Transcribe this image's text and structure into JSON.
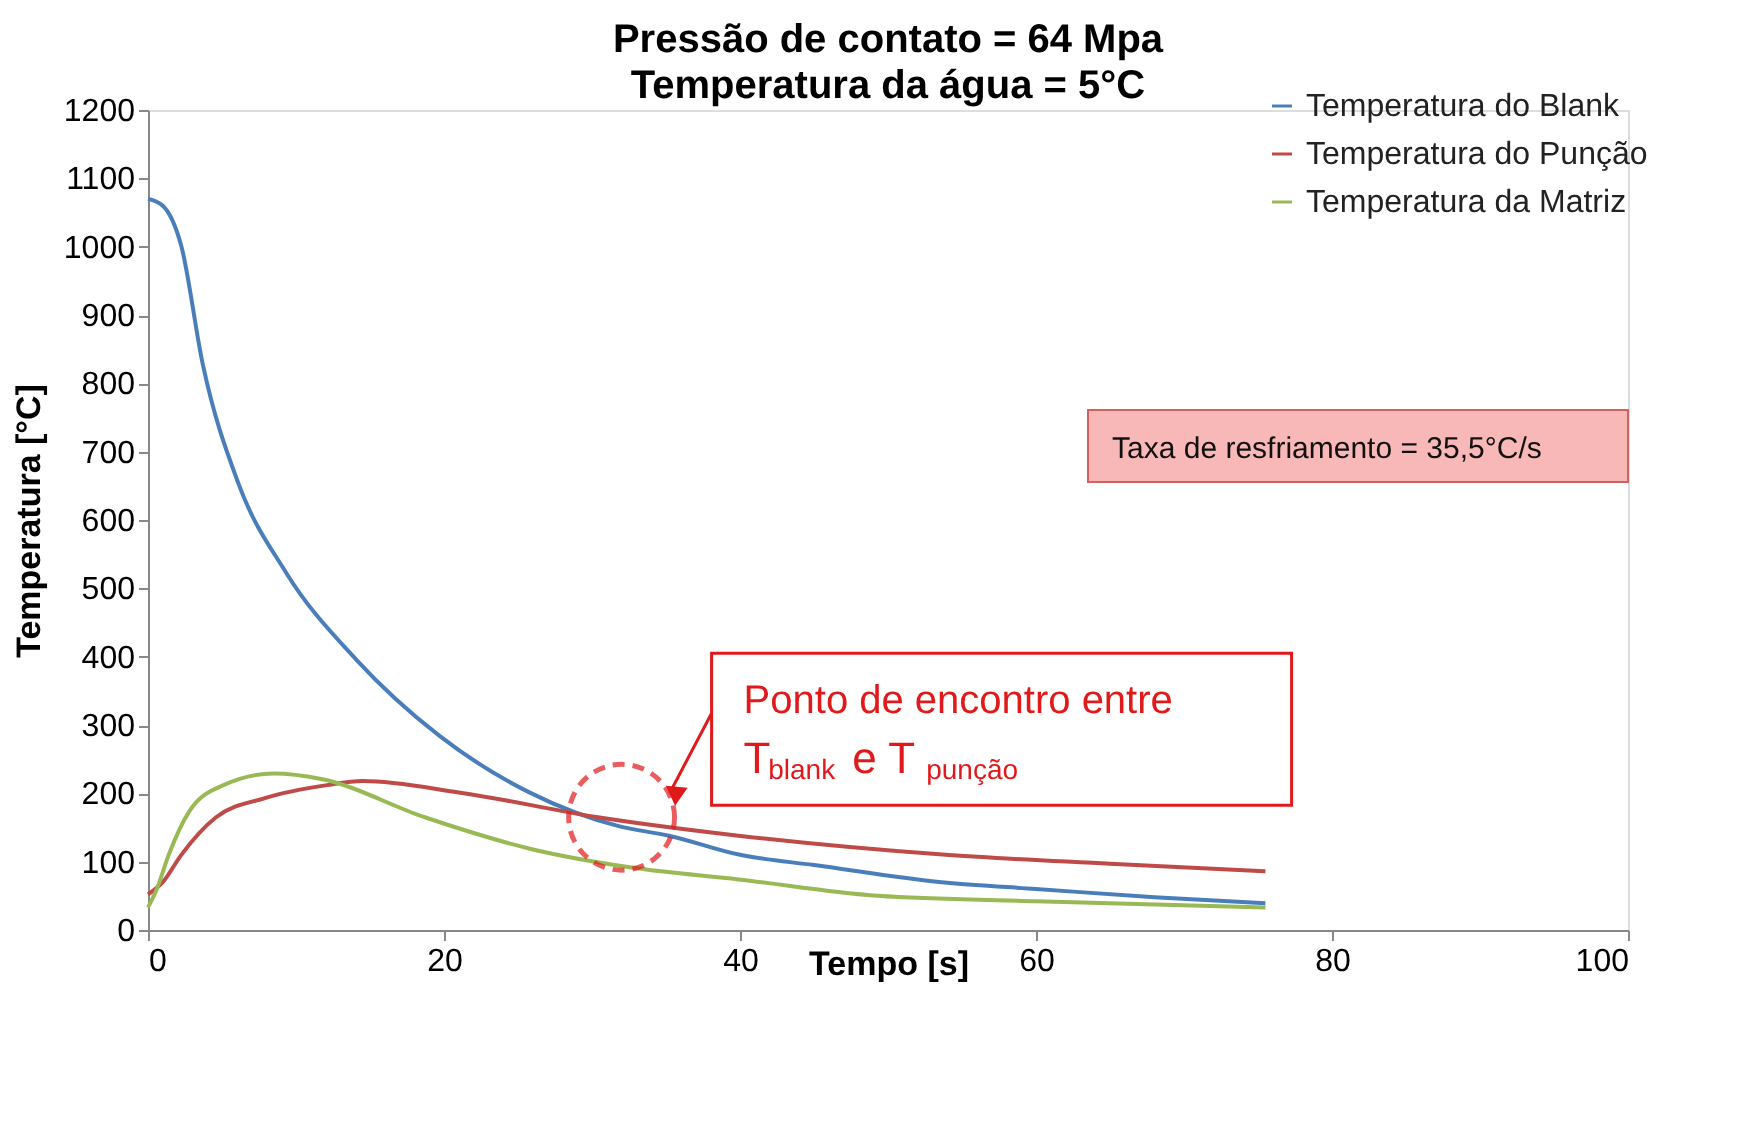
{
  "chart_data": {
    "type": "line",
    "title": "Pressão de contato = 64 Mpa",
    "subtitle": "Temperatura da água = 5°C",
    "xlabel": "Tempo [s]",
    "ylabel": "Temperatura [°C]",
    "xlim": [
      0,
      100
    ],
    "xticks": [
      0,
      20,
      40,
      60,
      80,
      100
    ],
    "ylim": [
      0,
      1200
    ],
    "yticks": [
      0,
      100,
      200,
      300,
      400,
      500,
      600,
      700,
      800,
      900,
      {
        "value": 1000,
        "label": "1000"
      },
      {
        "value": 1100,
        "label": "1100"
      },
      {
        "value": 1200,
        "label": "1200"
      }
    ],
    "grid": false,
    "legend": "top right",
    "marker": "none",
    "line_style": "solid",
    "series": [
      {
        "name": "Temperatura do Blank",
        "color": "#4a7ebb",
        "x": [
          0,
          1,
          2.25,
          3.7,
          6.1,
          9.3,
          14.1,
          19.7,
          25.8,
          31.8,
          35.2,
          40,
          45,
          54,
          60,
          68,
          75.5
        ],
        "values": [
          1070,
          1060,
          1001,
          828,
          654,
          524,
          395,
          284,
          201,
          152,
          138,
          110,
          95,
          69,
          60,
          48,
          39
        ]
      },
      {
        "name": "Temperatura do Punção",
        "color": "#be4b48",
        "x": [
          0,
          1,
          2.25,
          4.6,
          7.9,
          12.1,
          14.5,
          21.1,
          30.4,
          39.9,
          53.9,
          65,
          75.5
        ],
        "values": [
          52,
          70,
          110,
          165,
          193,
          212,
          218,
          201,
          165,
          138,
          110,
          97,
          86
        ]
      },
      {
        "name": "Temperatura da Matriz",
        "color": "#98b954",
        "x": [
          0,
          0.6,
          1.4,
          2.8,
          5.1,
          8.5,
          11.7,
          18.7,
          25.8,
          32.8,
          39.9,
          49.3,
          60,
          75.5
        ],
        "values": [
          33,
          60,
          110,
          174,
          212,
          229,
          221,
          165,
          119,
          91,
          74,
          50,
          42,
          33
        ]
      }
    ],
    "annotations": [
      {
        "text": "Ponto de encontro entre T$_{blank}$ e T$_{punção}$",
        "x": 32,
        "y": 165
      },
      "Taxa de resfriamento = 35,5°C/s"
    ]
  }
}
